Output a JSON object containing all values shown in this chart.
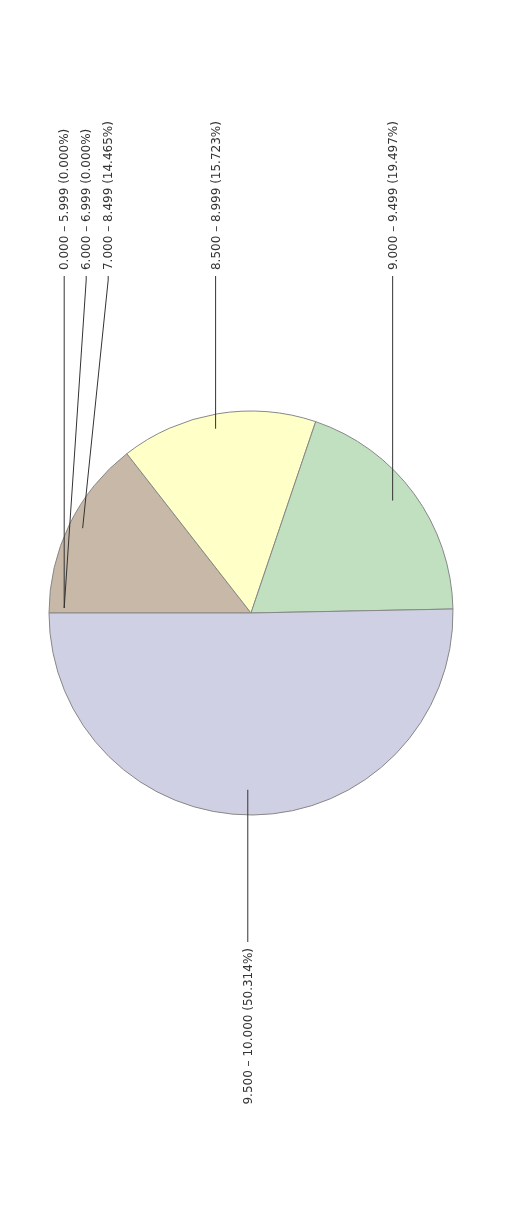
{
  "chart_data": {
    "type": "pie",
    "categories": [
      "0.000 – 5.999",
      "6.000 – 6.999",
      "7.000 – 8.499",
      "8.500 – 8.999",
      "9.000 – 9.499",
      "9.500 – 10.000"
    ],
    "values": [
      0,
      0,
      14.465,
      15.723,
      19.497,
      50.314
    ],
    "value_labels": [
      "(0.000%)",
      "(0.000%)",
      "(14.465%)",
      "(15.723%)",
      "(19.497%)",
      "(50.314%)"
    ],
    "colors": [
      "#e0a0a0",
      "#a0c0e0",
      "#c8b8a8",
      "#ffffc8",
      "#c0e0c0",
      "#d0d0e4"
    ],
    "legend": false
  }
}
